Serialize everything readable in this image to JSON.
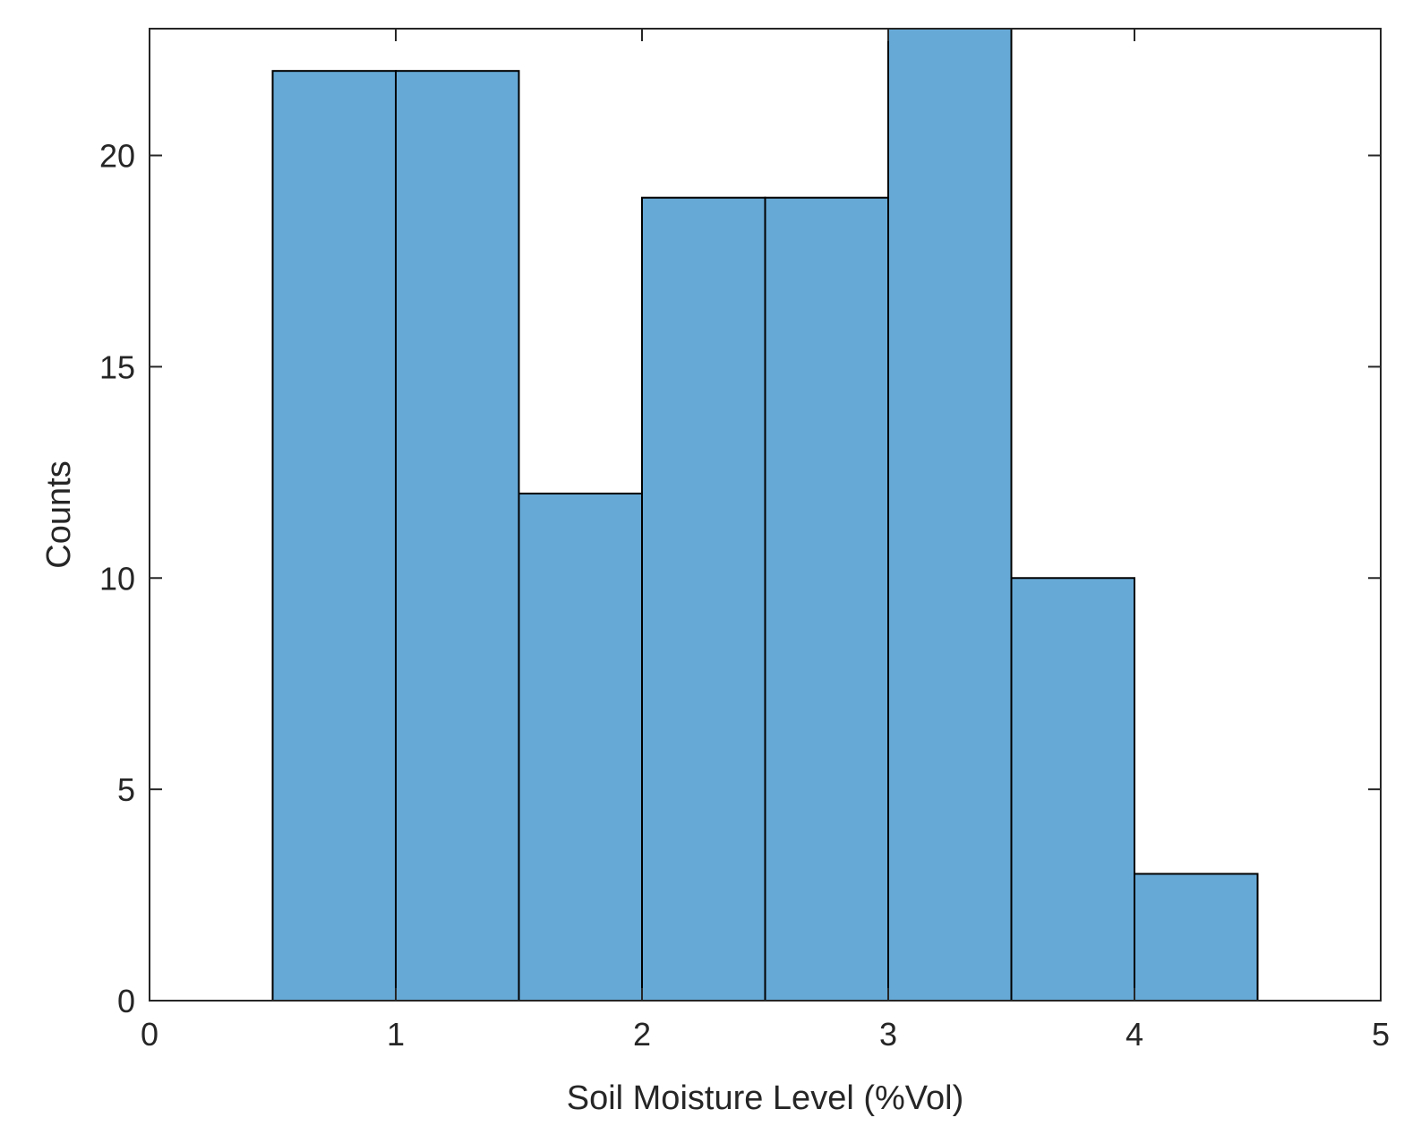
{
  "chart_data": {
    "type": "bar",
    "subtype": "histogram",
    "title": "",
    "xlabel": "Soil Moisture Level (%Vol)",
    "ylabel": "Counts",
    "xlim": [
      0,
      5
    ],
    "ylim": [
      0,
      23
    ],
    "xticks": [
      0,
      1,
      2,
      3,
      4,
      5
    ],
    "yticks": [
      0,
      5,
      10,
      15,
      20
    ],
    "bin_edges": [
      0.5,
      1.0,
      1.5,
      2.0,
      2.5,
      3.0,
      3.5,
      4.0,
      4.5
    ],
    "values": [
      22,
      22,
      12,
      19,
      19,
      23,
      10,
      3
    ],
    "grid": false,
    "legend": "none",
    "colors": {
      "bar_fill": "#66a9d6",
      "bar_edge": "#000000",
      "axis": "#262626"
    }
  }
}
